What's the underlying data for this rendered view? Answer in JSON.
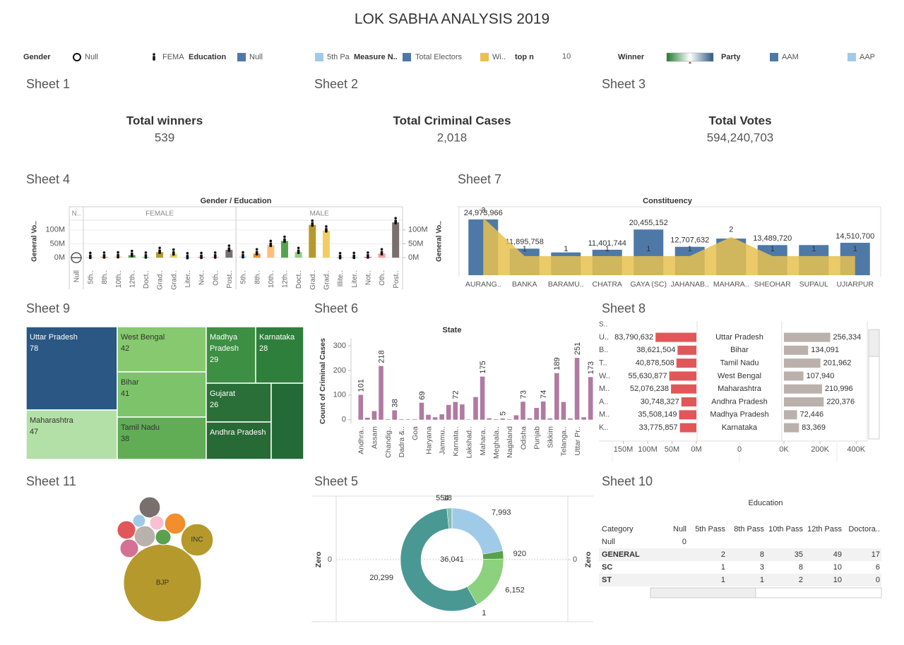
{
  "title": "LOK SABHA ANALYSIS 2019",
  "filters": [
    {
      "label": "Gender",
      "items": [
        {
          "name": "Null",
          "shape": "circle"
        },
        {
          "name": "FEMA",
          "shape": "person"
        }
      ]
    },
    {
      "label": "Education",
      "items": [
        {
          "name": "Null",
          "color": "#4e79a7"
        },
        {
          "name": "5th Pa",
          "color": "#a0cbe8"
        }
      ]
    },
    {
      "label": "Measure N..",
      "items": [
        {
          "name": "Total Electors",
          "color": "#4e79a7"
        },
        {
          "name": "Wi..",
          "color": "#e8c14f"
        }
      ]
    },
    {
      "label": "top n",
      "value": 10
    },
    {
      "label": "Winner",
      "gradient": [
        "#1e7a2c",
        "#ffffff",
        "#2a5783"
      ]
    },
    {
      "label": "Party",
      "items": [
        {
          "name": "AAM",
          "color": "#4e79a7"
        },
        {
          "name": "AAP",
          "color": "#a0cbe8"
        }
      ]
    }
  ],
  "kpis": [
    {
      "sheet": "Sheet 1",
      "label": "Total winners",
      "value": "539"
    },
    {
      "sheet": "Sheet 2",
      "label": "Total Criminal Cases",
      "value": "2,018"
    },
    {
      "sheet": "Sheet 3",
      "label": "Total Votes",
      "value": "594,240,703"
    }
  ],
  "chart_data": [
    {
      "type": "panel_bar",
      "sheet": "Sheet 4",
      "title": "Gender / Education",
      "y_label": "General Vo..",
      "y2_label": "General Vo..",
      "grid": true,
      "ylim": [
        -25000000,
        135000000
      ],
      "yticks": [
        {
          "value": 0,
          "label": "0M"
        },
        {
          "value": 50000000,
          "label": "50M"
        },
        {
          "value": 100000000,
          "label": "100M"
        }
      ],
      "y2lim": [
        -25000000,
        135000000
      ],
      "y2ticks": [
        {
          "value": 0,
          "label": "0M"
        },
        {
          "value": 50000000,
          "label": "50M"
        },
        {
          "value": 100000000,
          "label": "100M"
        }
      ],
      "groups": [
        {
          "name": "N..",
          "categories": [
            "Null"
          ],
          "values": [
            0
          ],
          "colors": [
            "#4e79a7"
          ]
        },
        {
          "name": "FEMALE",
          "categories": [
            "5th..",
            "8th..",
            "10th..",
            "12th..",
            "Doct..",
            "Grad..",
            "Grad..",
            "Liter..",
            "Not..",
            "Oth..",
            "Post.."
          ],
          "values": [
            2000000,
            3000000,
            4000000,
            9000000,
            3000000,
            20000000,
            14000000,
            1000000,
            2000000,
            3000000,
            28000000
          ],
          "colors": [
            "#a0cbe8",
            "#f28e2b",
            "#ffbe7d",
            "#59a14f",
            "#8cd17d",
            "#b6992d",
            "#f1ce63",
            "#86bcb6",
            "#e15759",
            "#ff9d9a",
            "#79706e"
          ]
        },
        {
          "name": "MALE",
          "categories": [
            "5th..",
            "8th..",
            "10th..",
            "12th..",
            "Doct..",
            "Grad..",
            "Grad..",
            "Illite..",
            "Liter..",
            "Not..",
            "Oth..",
            "Post.."
          ],
          "values": [
            4000000,
            15000000,
            45000000,
            60000000,
            20000000,
            118000000,
            97000000,
            1000000,
            2000000,
            3000000,
            15000000,
            127000000
          ],
          "colors": [
            "#a0cbe8",
            "#f28e2b",
            "#ffbe7d",
            "#59a14f",
            "#8cd17d",
            "#b6992d",
            "#f1ce63",
            "#499894",
            "#86bcb6",
            "#e15759",
            "#ff9d9a",
            "#79706e"
          ]
        }
      ]
    },
    {
      "type": "combo",
      "sheet": "Sheet 7",
      "title": "Constituency",
      "categories": [
        "AURANG..",
        "BANKA",
        "BARAMU..",
        "CHATRA",
        "GAYA (SC)",
        "JAHANAB..",
        "MAHARA..",
        "SHEOHAR",
        "SUPAUL",
        "UJIARPUR"
      ],
      "ylim": [
        0,
        30000000
      ],
      "y2lim": [
        0,
        3.5
      ],
      "series": [
        {
          "color": "#4e79a7",
          "values": [
            24973966,
            11895758,
            10200000,
            11401744,
            20455152,
            12707632,
            16400000,
            13489720,
            13500000,
            14510700
          ],
          "value_labels": [
            "24,973,966",
            "11,895,758",
            null,
            "11,401,744",
            "20,455,152",
            "12,707,632",
            null,
            "13,489,720",
            null,
            "14,510,700"
          ]
        },
        {
          "axis": "y2",
          "color": "#e8c14f",
          "values": [
            3,
            1,
            1,
            1,
            1,
            1,
            2,
            1,
            1,
            1
          ]
        }
      ]
    },
    {
      "type": "treemap",
      "sheet": "Sheet 9",
      "categories": [
        "Uttar Pradesh",
        "Maharashtra",
        "West Bengal",
        "Bihar",
        "Tamil Nadu",
        "Madhya Pradesh",
        "Karnataka",
        "Gujarat",
        "Andhra Pradesh",
        null
      ],
      "values": [
        78,
        47,
        42,
        41,
        38,
        29,
        28,
        26,
        25,
        25
      ],
      "value_labels": [
        "78",
        "47",
        "42",
        "41",
        "38",
        "29",
        "28",
        "26",
        null,
        null
      ],
      "colors": [
        "#2a5783",
        "#b3e0a6",
        "#86c96e",
        "#7dc36a",
        "#60ad55",
        "#3d8f43",
        "#2f7f3c",
        "#2a6f38",
        "#276a35",
        "#246a36"
      ]
    },
    {
      "type": "bar",
      "sheet": "Sheet 6",
      "title": "State",
      "y_label": "Count of Criminal Cases",
      "color": "#b07aa1",
      "categories": [
        "Andhra..",
        null,
        "Assam",
        null,
        "Chandig..",
        null,
        "Dadra &..",
        null,
        "Goa",
        null,
        "Haryana",
        null,
        "Jammu..",
        null,
        "Karnata..",
        null,
        "Lakshad..",
        null,
        "Mahara..",
        null,
        "Meghala..",
        null,
        "Nagaland",
        null,
        "Odisha",
        null,
        "Punjab",
        null,
        "Sikkim",
        null,
        "Telanga..",
        null,
        "Uttar Pr..",
        null,
        null
      ],
      "values": [
        101,
        8,
        35,
        218,
        2,
        38,
        2,
        2,
        2,
        69,
        20,
        10,
        22,
        60,
        72,
        62,
        1,
        92,
        175,
        6,
        2,
        5,
        2,
        18,
        73,
        6,
        48,
        74,
        5,
        189,
        72,
        5,
        251,
        10,
        173
      ],
      "value_labels": [
        "101",
        null,
        null,
        "218",
        null,
        "38",
        null,
        null,
        null,
        "69",
        null,
        null,
        null,
        null,
        "72",
        null,
        null,
        null,
        "175",
        null,
        null,
        "5",
        null,
        null,
        "73",
        null,
        null,
        "74",
        null,
        "189",
        null,
        null,
        "251",
        null,
        "173"
      ],
      "ylim": [
        -15,
        330
      ],
      "yticks": [
        0,
        100,
        200,
        300
      ]
    },
    {
      "type": "butterfly",
      "sheet": "Sheet 8",
      "header": "S..",
      "row_labels": [
        "U..",
        "B..",
        "T..",
        "W..",
        "M..",
        "A..",
        "M..",
        "K.."
      ],
      "categories": [
        "Uttar Pradesh",
        "Bihar",
        "Tamil Nadu",
        "West Bengal",
        "Maharashtra",
        "Andhra Pradesh",
        "Madhya Pradesh",
        "Karnataka"
      ],
      "mid_ticks": [
        0
      ],
      "series": [
        {
          "color": "#e15759",
          "values": [
            83790632,
            38621504,
            40878508,
            55630877,
            52076238,
            30748327,
            35508149,
            33775857
          ],
          "value_labels": [
            "83,790,632",
            "38,621,504",
            "40,878,508",
            "55,630,877",
            "52,076,238",
            "30,748,327",
            "35,508,149",
            "33,775,857"
          ],
          "xlim": [
            0,
            200000000
          ],
          "xticks": [
            {
              "value": 0,
              "label": "0M"
            },
            {
              "value": 50000000,
              "label": "50M"
            },
            {
              "value": 100000000,
              "label": "100M"
            },
            {
              "value": 150000000,
              "label": "150M"
            }
          ]
        },
        {
          "color": "#bab0ac",
          "values": [
            256334,
            134091,
            201962,
            107940,
            210996,
            220376,
            72446,
            83369
          ],
          "value_labels": [
            "256,334",
            "134,091",
            "201,962",
            "107,940",
            "210,996",
            "220,376",
            "72,446",
            "83,369"
          ],
          "xlim": [
            0,
            450000
          ],
          "xticks": [
            {
              "value": 0,
              "label": "0K"
            },
            {
              "value": 200000,
              "label": "200K"
            },
            {
              "value": 400000,
              "label": "400K"
            }
          ]
        }
      ]
    },
    {
      "type": "bubble",
      "sheet": "Sheet 11",
      "categories": [
        "BJP",
        "INC",
        null,
        null,
        null,
        null,
        null,
        null,
        null,
        null
      ],
      "values": [
        303,
        52,
        22,
        8,
        10,
        22,
        17,
        22,
        12,
        17
      ],
      "colors": [
        "#b6992d",
        "#b6992d",
        "#79706e",
        "#a0cbe8",
        "#fabfd2",
        "#f28e2b",
        "#e15759",
        "#bab0ac",
        "#59a14f",
        "#d37295"
      ]
    },
    {
      "type": "donut",
      "sheet": "Sheet 5",
      "values": [
        7993,
        920,
        6152,
        1,
        20299,
        554,
        18
      ],
      "value_labels": [
        "7,993",
        "920",
        "6,152",
        "1",
        "20,299",
        "554",
        "18"
      ],
      "colors": [
        "#a0cbe8",
        "#59a14f",
        "#8cd17d",
        "#b6992d",
        "#499894",
        "#86bcb6",
        "#e15759"
      ],
      "center_label": "36,041",
      "y_label": "Zero",
      "y2_label": "Zero",
      "ylim": [
        -1,
        1
      ],
      "yticks": [
        0
      ],
      "y2lim": [
        -1,
        1
      ],
      "y2ticks": [
        0
      ]
    }
  ],
  "table": {
    "sheet": "Sheet 10",
    "title": "Education",
    "columns": [
      "Category",
      "Null",
      "5th Pass",
      "8th Pass",
      "10th Pass",
      "12th Pass",
      "Doctora.."
    ],
    "rows": [
      [
        "Null",
        0,
        null,
        null,
        null,
        null,
        null
      ],
      [
        "GENERAL",
        null,
        2,
        8,
        35,
        49,
        17
      ],
      [
        "SC",
        null,
        1,
        3,
        8,
        10,
        6
      ],
      [
        "ST",
        null,
        1,
        1,
        2,
        10,
        0
      ]
    ]
  }
}
